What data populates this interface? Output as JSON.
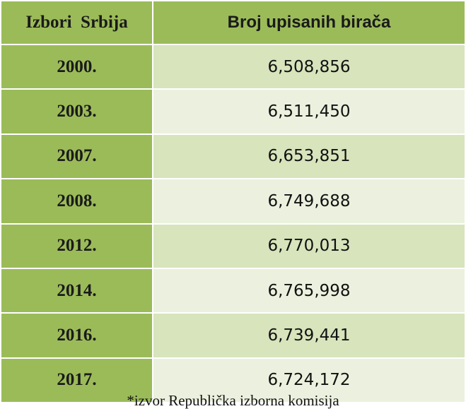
{
  "table": {
    "header": [
      "Izbori  Srbija",
      "Broj upisanih birača"
    ],
    "rows": [
      [
        "2000.",
        "6,508,856"
      ],
      [
        "2003.",
        "6,511,450"
      ],
      [
        "2007.",
        "6,653,851"
      ],
      [
        "2008.",
        "6,749,688"
      ],
      [
        "2012.",
        "6,770,013"
      ],
      [
        "2014.",
        "6,765,998"
      ],
      [
        "2016.",
        "6,739,441"
      ],
      [
        "2017.",
        "6,724,172"
      ]
    ]
  },
  "footnote": "*izvor Republička izborna komisija"
}
